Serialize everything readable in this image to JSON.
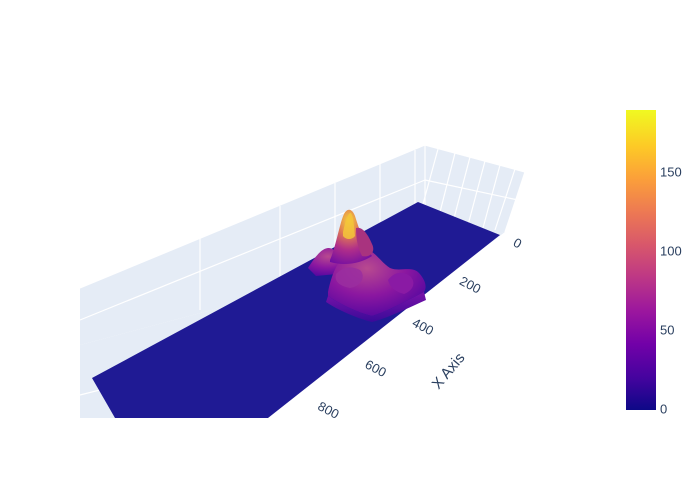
{
  "chart_data": {
    "type": "surface",
    "title": "",
    "x_axis": {
      "title": "X Axis",
      "ticks": [
        "0",
        "200",
        "400",
        "600",
        "800"
      ],
      "tick_values": [
        0,
        200,
        400,
        600,
        800
      ],
      "range": [
        0,
        900
      ]
    },
    "colorbar": {
      "ticks": [
        "0",
        "50",
        "100",
        "150"
      ],
      "tick_values": [
        0,
        50,
        100,
        150
      ],
      "range": [
        0,
        190
      ],
      "colorscale": [
        "#0d0887",
        "#46039f",
        "#7201a8",
        "#9c179e",
        "#bd3786",
        "#d8576b",
        "#ed7953",
        "#fb9f3a",
        "#fdca26",
        "#f0f921"
      ]
    },
    "surface": {
      "base_value": 0,
      "peak_value": 190,
      "description_peak_x": 300
    },
    "colors": {
      "pane": "#e5ecf6",
      "grid": "#ffffff",
      "base": "#1f1a94",
      "text": "#2a3f5f"
    }
  }
}
